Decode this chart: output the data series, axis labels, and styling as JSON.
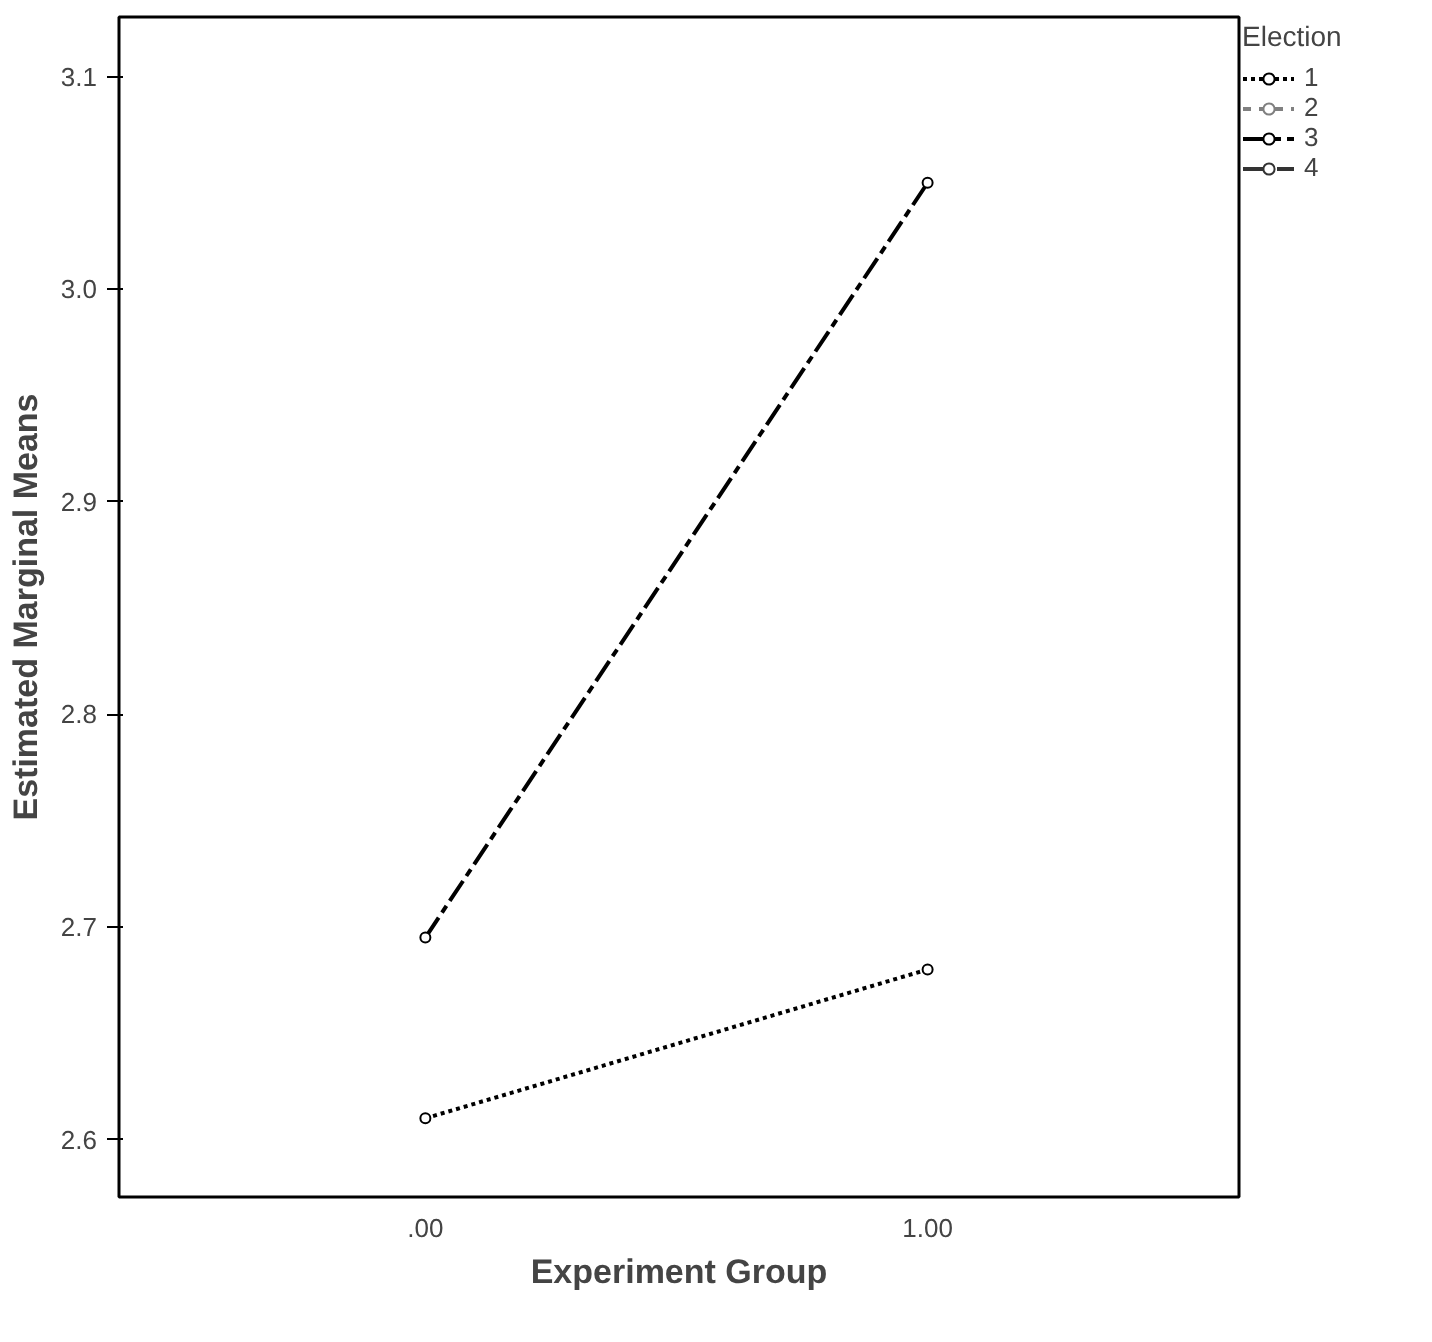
{
  "chart_data": {
    "type": "line",
    "xlabel": "Experiment Group",
    "ylabel": "Estimated Marginal Means",
    "legend_title": "Election",
    "categories": [
      ".00",
      "1.00"
    ],
    "ylim": [
      2.573,
      3.128
    ],
    "yticks": [
      2.6,
      2.7,
      2.8,
      2.9,
      {
        "value": 3.0,
        "label": "3.0"
      },
      3.1
    ],
    "grid": false,
    "legend": "right",
    "marker": "circle",
    "series": [
      {
        "name": "1",
        "color": "#000000",
        "line_style": "dotted",
        "values": [
          2.61,
          2.68
        ]
      },
      {
        "name": "2",
        "color": "#808080",
        "line_style": "dashed",
        "values": [
          null,
          null
        ]
      },
      {
        "name": "3",
        "color": "#000000",
        "line_style": "dashdot",
        "values": [
          2.695,
          3.05
        ]
      },
      {
        "name": "4",
        "color": "#333333",
        "line_style": "longdash",
        "values": [
          null,
          null
        ]
      }
    ]
  }
}
